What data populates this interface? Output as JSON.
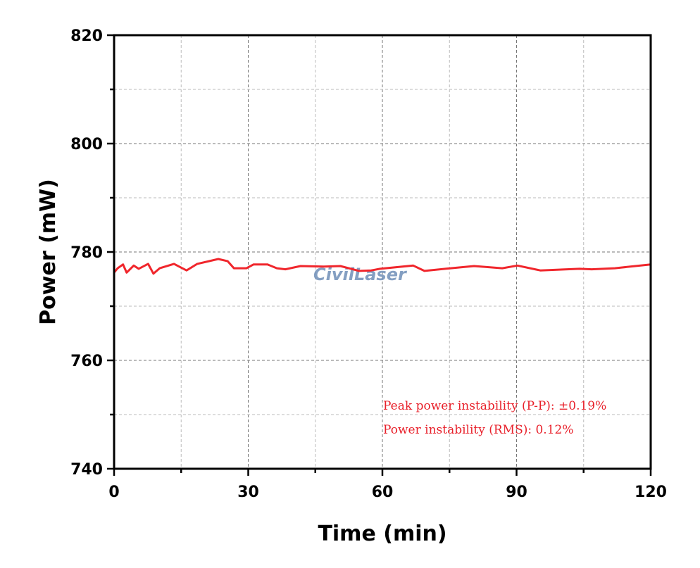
{
  "chart_data": {
    "type": "line",
    "title": "",
    "xlabel": "Time (min)",
    "ylabel": "Power (mW)",
    "xlim": [
      0,
      120
    ],
    "ylim": [
      740,
      820
    ],
    "xticks": [
      0,
      30,
      60,
      90,
      120
    ],
    "yticks": [
      740,
      760,
      780,
      800,
      820
    ],
    "grid": true,
    "line_color": "#f0262c",
    "series": [
      {
        "name": "Power",
        "x": [
          0,
          0.8,
          2.0,
          2.8,
          4.4,
          5.5,
          7.6,
          8.8,
          10.2,
          13.4,
          16.2,
          18.6,
          23.3,
          25.4,
          26.8,
          29.6,
          31.2,
          34.3,
          36.4,
          38.3,
          41.7,
          46.9,
          50.6,
          54.8,
          57.5,
          59.5,
          66.9,
          69.4,
          75.3,
          80.5,
          86.8,
          90.2,
          95.3,
          104.1,
          106.8,
          112.0,
          120
        ],
        "y": [
          776.2,
          777.0,
          777.7,
          776.2,
          777.5,
          776.9,
          777.8,
          776.0,
          777.0,
          777.8,
          776.6,
          777.8,
          778.7,
          778.3,
          777.0,
          777.0,
          777.7,
          777.7,
          777.0,
          776.8,
          777.4,
          777.3,
          777.4,
          776.5,
          776.6,
          776.9,
          777.5,
          776.5,
          777.0,
          777.4,
          777.0,
          777.5,
          776.6,
          776.9,
          776.8,
          777.0,
          777.7
        ]
      }
    ],
    "annotations": [
      "Peak power instability (P-P): ±0.19%",
      "Power instability (RMS): 0.12%"
    ],
    "watermark": "CivilLaser"
  }
}
